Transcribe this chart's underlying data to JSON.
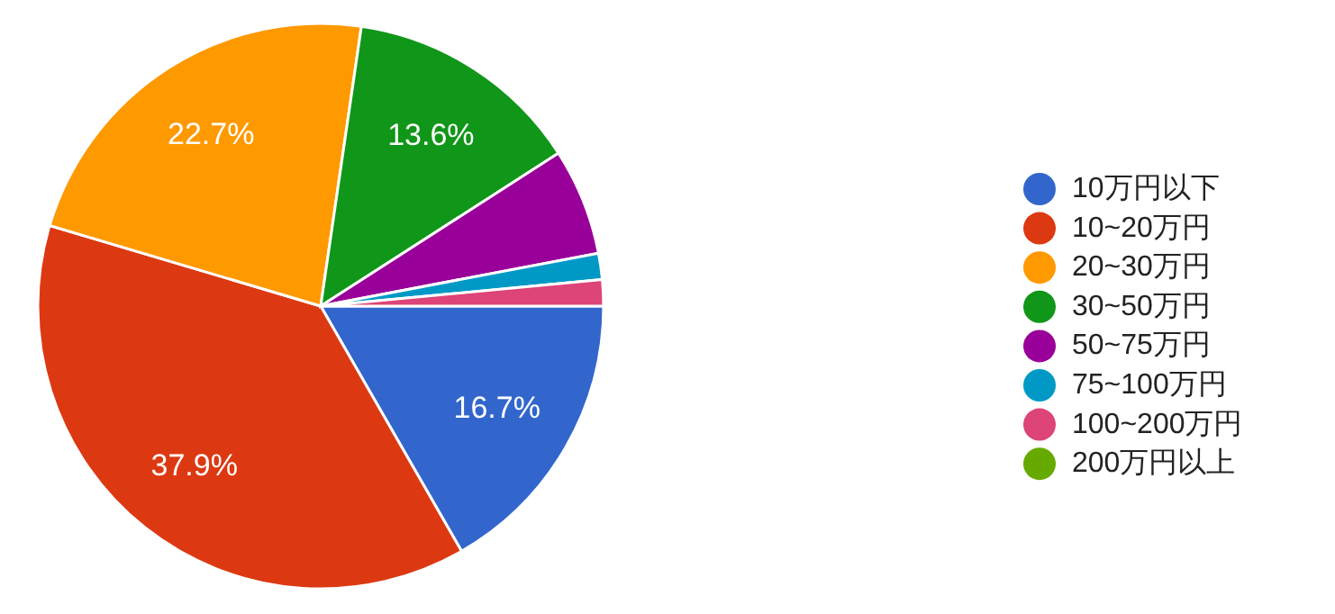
{
  "chart_data": {
    "type": "pie",
    "categories": [
      "10万円以下",
      "10~20万円",
      "20~30万円",
      "30~50万円",
      "50~75万円",
      "75~100万円",
      "100~200万円",
      "200万円以上"
    ],
    "values": [
      16.7,
      37.9,
      22.7,
      13.6,
      6.1,
      1.5,
      1.5,
      0
    ],
    "colors": [
      "#3366cc",
      "#dc3912",
      "#ff9900",
      "#109618",
      "#990099",
      "#0099c6",
      "#dd4477",
      "#66aa00"
    ],
    "value_labels": [
      "16.7%",
      "37.9%",
      "22.7%",
      "13.6%",
      null,
      null,
      null,
      null
    ],
    "legend": "right"
  }
}
